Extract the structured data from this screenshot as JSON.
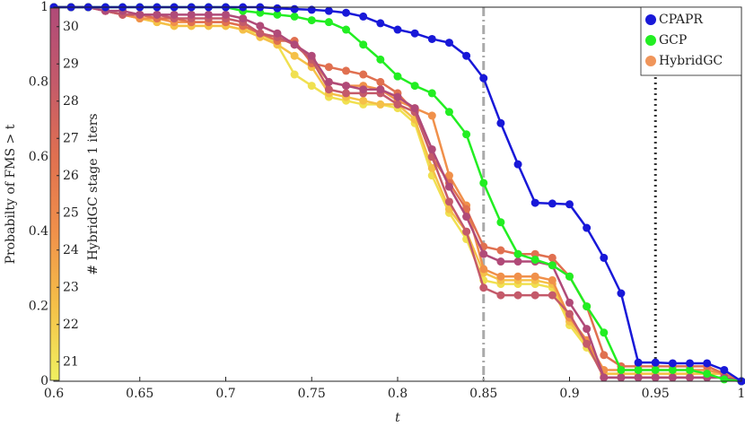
{
  "chart_data": {
    "type": "line",
    "xlabel": "t",
    "ylabel": "Probabilty of FMS > t",
    "x": [
      0.6,
      0.61,
      0.62,
      0.63,
      0.64,
      0.65,
      0.66,
      0.67,
      0.68,
      0.69,
      0.7,
      0.71,
      0.72,
      0.73,
      0.74,
      0.75,
      0.76,
      0.77,
      0.78,
      0.79,
      0.8,
      0.81,
      0.82,
      0.83,
      0.84,
      0.85,
      0.86,
      0.87,
      0.88,
      0.89,
      0.9,
      0.91,
      0.92,
      0.93,
      0.94,
      0.95,
      0.96,
      0.97,
      0.98,
      0.99,
      1
    ],
    "xlim": [
      0.6,
      1
    ],
    "xticks": [
      0.6,
      0.65,
      0.7,
      0.75,
      0.8,
      0.85,
      0.9,
      0.95,
      1
    ],
    "ylim": [
      0,
      1
    ],
    "yticks": [
      0,
      0.2,
      0.4,
      0.6,
      0.8,
      1
    ],
    "legend": "upper right",
    "series": [
      {
        "name": "CPAPR",
        "color": "#1818d8",
        "values": [
          1,
          1,
          1,
          1,
          1,
          1,
          1,
          1,
          1,
          1,
          1,
          1,
          1,
          0.997,
          0.995,
          0.993,
          0.99,
          0.985,
          0.975,
          0.957,
          0.94,
          0.93,
          0.915,
          0.905,
          0.87,
          0.81,
          0.69,
          0.58,
          0.477,
          0.475,
          0.473,
          0.41,
          0.33,
          0.235,
          0.05,
          0.05,
          0.048,
          0.048,
          0.048,
          0.03,
          0
        ]
      },
      {
        "name": "GCP",
        "color": "#22ee22",
        "values": [
          1,
          1,
          1,
          1,
          1,
          1,
          1,
          1,
          1,
          1,
          1,
          0.99,
          0.985,
          0.98,
          0.975,
          0.965,
          0.96,
          0.94,
          0.9,
          0.86,
          0.815,
          0.79,
          0.77,
          0.72,
          0.66,
          0.53,
          0.425,
          0.34,
          0.325,
          0.31,
          0.28,
          0.2,
          0.13,
          0.03,
          0.03,
          0.03,
          0.03,
          0.03,
          0.02,
          0.005,
          0
        ]
      },
      {
        "name": "HybridGC",
        "color": "#f0955a",
        "runs": [
          {
            "color": "#f0e050",
            "values": [
              1,
              1,
              1,
              0.99,
              0.98,
              0.97,
              0.96,
              0.95,
              0.95,
              0.95,
              0.95,
              0.94,
              0.93,
              0.9,
              0.82,
              0.79,
              0.76,
              0.75,
              0.74,
              0.74,
              0.73,
              0.69,
              0.55,
              0.45,
              0.38,
              0.27,
              0.26,
              0.26,
              0.26,
              0.25,
              0.15,
              0.09,
              0.02,
              0.02,
              0.02,
              0.02,
              0.02,
              0.02,
              0.02,
              0.02,
              0
            ]
          },
          {
            "color": "#f5c048",
            "values": [
              1,
              1,
              1,
              0.99,
              0.98,
              0.97,
              0.96,
              0.95,
              0.95,
              0.95,
              0.95,
              0.94,
              0.92,
              0.9,
              0.87,
              0.84,
              0.77,
              0.76,
              0.75,
              0.74,
              0.74,
              0.7,
              0.57,
              0.46,
              0.4,
              0.29,
              0.27,
              0.27,
              0.27,
              0.26,
              0.16,
              0.1,
              0.02,
              0.02,
              0.02,
              0.02,
              0.02,
              0.02,
              0.02,
              0.02,
              0
            ]
          },
          {
            "color": "#f0904a",
            "values": [
              1,
              1,
              1,
              0.99,
              0.98,
              0.97,
              0.97,
              0.96,
              0.96,
              0.96,
              0.96,
              0.95,
              0.93,
              0.92,
              0.9,
              0.86,
              0.8,
              0.79,
              0.79,
              0.78,
              0.75,
              0.73,
              0.71,
              0.55,
              0.47,
              0.3,
              0.28,
              0.28,
              0.28,
              0.27,
              0.17,
              0.11,
              0.03,
              0.03,
              0.03,
              0.03,
              0.03,
              0.03,
              0.03,
              0.02,
              0
            ]
          },
          {
            "color": "#e07050",
            "values": [
              1,
              1,
              1,
              0.99,
              0.98,
              0.98,
              0.97,
              0.97,
              0.96,
              0.96,
              0.96,
              0.95,
              0.93,
              0.91,
              0.91,
              0.85,
              0.84,
              0.83,
              0.82,
              0.8,
              0.77,
              0.72,
              0.6,
              0.53,
              0.46,
              0.36,
              0.35,
              0.34,
              0.34,
              0.33,
              0.28,
              0.2,
              0.07,
              0.04,
              0.04,
              0.04,
              0.04,
              0.04,
              0.04,
              0.02,
              0
            ]
          },
          {
            "color": "#c45a6a",
            "values": [
              1,
              1,
              1,
              0.99,
              0.98,
              0.98,
              0.98,
              0.97,
              0.97,
              0.97,
              0.97,
              0.96,
              0.93,
              0.92,
              0.9,
              0.86,
              0.78,
              0.77,
              0.77,
              0.77,
              0.74,
              0.72,
              0.6,
              0.48,
              0.4,
              0.25,
              0.23,
              0.23,
              0.23,
              0.23,
              0.18,
              0.1,
              0.01,
              0.01,
              0.01,
              0.01,
              0.01,
              0.01,
              0.01,
              0.01,
              0
            ]
          },
          {
            "color": "#b04a78",
            "values": [
              1,
              1,
              1,
              0.99,
              0.99,
              0.98,
              0.98,
              0.98,
              0.98,
              0.98,
              0.98,
              0.97,
              0.95,
              0.93,
              0.9,
              0.87,
              0.8,
              0.79,
              0.78,
              0.78,
              0.76,
              0.73,
              0.62,
              0.52,
              0.44,
              0.34,
              0.32,
              0.32,
              0.32,
              0.31,
              0.21,
              0.14,
              0.01,
              0.01,
              0.01,
              0.01,
              0.01,
              0.01,
              0.01,
              0.01,
              0
            ]
          }
        ]
      }
    ],
    "vlines": [
      {
        "x": 0.85,
        "color": "#aaaaaa",
        "style": "dashdot"
      },
      {
        "x": 0.95,
        "color": "#333333",
        "style": "dotted"
      }
    ],
    "colorbar": {
      "label": "# HybridGC stage 1 iters",
      "lim": [
        20.5,
        30.5
      ],
      "ticks": [
        21,
        22,
        23,
        24,
        25,
        26,
        27,
        28,
        29,
        30
      ],
      "colors": [
        "#f0f060",
        "#f5c048",
        "#f0904a",
        "#e07050",
        "#c45a6a",
        "#b04a78"
      ]
    }
  }
}
